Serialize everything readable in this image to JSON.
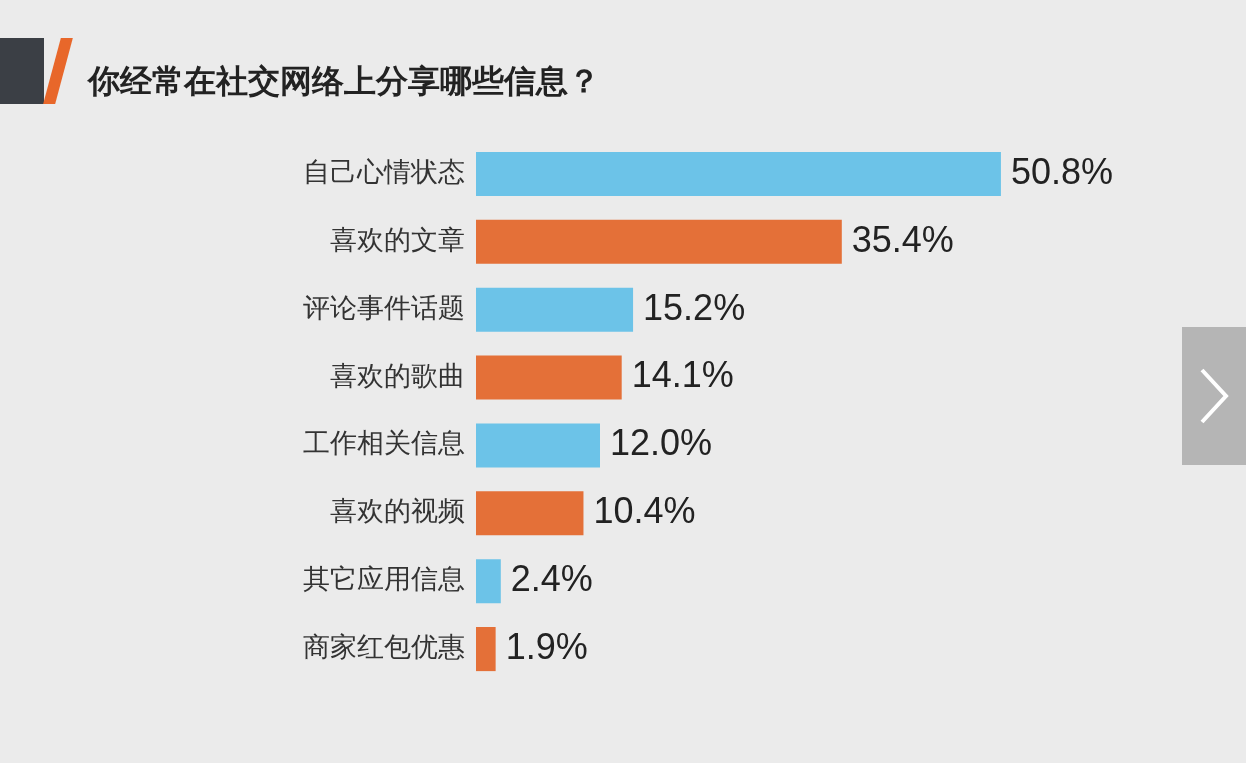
{
  "chart_data": {
    "type": "bar",
    "orientation": "horizontal",
    "title": "你经常在社交网络上分享哪些信息？",
    "categories": [
      "自己心情状态",
      "喜欢的文章",
      "评论事件话题",
      "喜欢的歌曲",
      "工作相关信息",
      "喜欢的视频",
      "其它应用信息",
      "商家红包优惠"
    ],
    "values": [
      50.8,
      35.4,
      15.2,
      14.1,
      12.0,
      10.4,
      2.4,
      1.9
    ],
    "value_labels": [
      "50.8%",
      "35.4%",
      "15.2%",
      "14.1%",
      "12.0%",
      "10.4%",
      "2.4%",
      "1.9%"
    ],
    "colors": [
      "#6cc3e8",
      "#e47038",
      "#6cc3e8",
      "#e47038",
      "#6cc3e8",
      "#e47038",
      "#6cc3e8",
      "#e47038"
    ],
    "tick_labels": "y",
    "legend": false
  }
}
